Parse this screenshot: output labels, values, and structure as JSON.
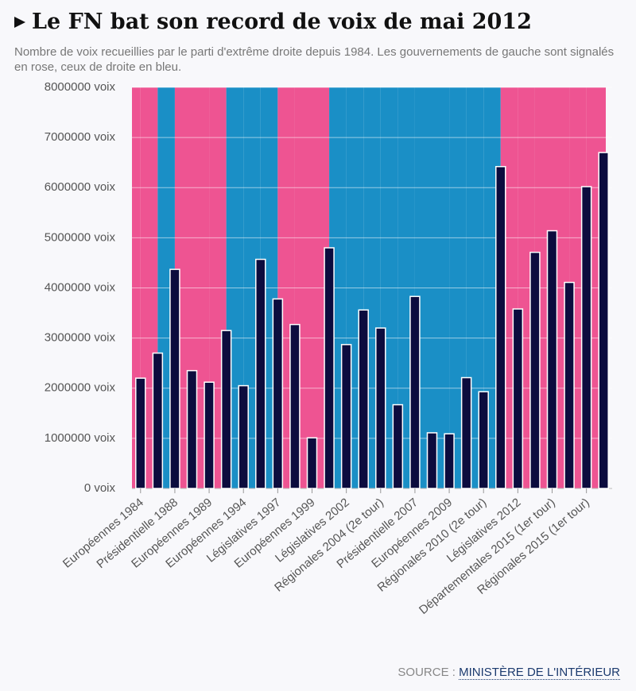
{
  "chart_data": {
    "type": "bar",
    "title": "Le FN bat son record de voix de mai 2012",
    "subtitle": "Nombre de voix recueillies par le parti d'extrême droite depuis 1984. Les gouvernements de gauche sont signalés en rose, ceux de droite en bleu.",
    "source_label": "SOURCE :",
    "source": "MINISTÈRE DE L'INTÉRIEUR",
    "categories": [
      "Européennes 1984",
      null,
      "Présidentielle 1988",
      null,
      "Européennes 1989",
      null,
      "Européennes 1994",
      null,
      "Législatives 1997",
      null,
      "Européennes 1999",
      null,
      "Législatives 2002",
      null,
      "Régionales 2004 (2e tour)",
      null,
      "Présidentielle 2007",
      null,
      "Européennes 2009",
      null,
      "Régionales 2010 (2e tour)",
      null,
      "Législatives 2012",
      null,
      "Départementales 2015 (1er tour)",
      null,
      "Régionales 2015 (1er tour)",
      null
    ],
    "values": [
      2200000,
      2700000,
      4370000,
      2350000,
      2120000,
      3150000,
      2050000,
      4570000,
      3780000,
      3270000,
      1010000,
      4800000,
      2870000,
      3560000,
      3200000,
      1670000,
      3830000,
      1110000,
      1090000,
      2210000,
      1930000,
      6420000,
      3580000,
      4710000,
      5140000,
      4110000,
      6020000,
      6700000
    ],
    "color": "#0c0c3e",
    "band_colors": [
      "#ee5492",
      "#ee5492",
      "#1a8fc6",
      "#ee5492",
      "#ee5492",
      "#ee5492",
      "#1a8fc6",
      "#1a8fc6",
      "#1a8fc6",
      "#ee5492",
      "#ee5492",
      "#ee5492",
      "#1a8fc6",
      "#1a8fc6",
      "#1a8fc6",
      "#1a8fc6",
      "#1a8fc6",
      "#1a8fc6",
      "#1a8fc6",
      "#1a8fc6",
      "#1a8fc6",
      "#1a8fc6",
      "#ee5492",
      "#ee5492",
      "#ee5492",
      "#ee5492",
      "#ee5492",
      "#ee5492"
    ],
    "ylim": [
      0,
      8000000
    ],
    "yticks": [
      {
        "value": 0,
        "label": "0 voix"
      },
      {
        "value": 1000000,
        "label": "1000000 voix"
      },
      {
        "value": 2000000,
        "label": "2000000 voix"
      },
      {
        "value": 3000000,
        "label": "3000000 voix"
      },
      {
        "value": 4000000,
        "label": "4000000 voix"
      },
      {
        "value": 5000000,
        "label": "5000000 voix"
      },
      {
        "value": 6000000,
        "label": "6000000 voix"
      },
      {
        "value": 7000000,
        "label": "7000000 voix"
      },
      {
        "value": 8000000,
        "label": "8000000 voix"
      }
    ],
    "grid": true
  }
}
